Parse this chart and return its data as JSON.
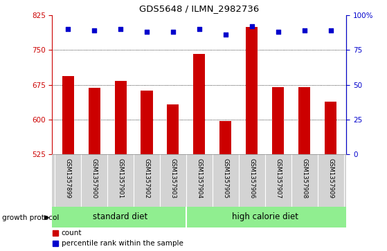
{
  "title": "GDS5648 / ILMN_2982736",
  "samples": [
    "GSM1357899",
    "GSM1357900",
    "GSM1357901",
    "GSM1357902",
    "GSM1357903",
    "GSM1357904",
    "GSM1357905",
    "GSM1357906",
    "GSM1357907",
    "GSM1357908",
    "GSM1357909"
  ],
  "counts": [
    693,
    668,
    683,
    663,
    633,
    742,
    597,
    800,
    670,
    670,
    638
  ],
  "percentile_ranks": [
    90,
    89,
    90,
    88,
    88,
    90,
    86,
    92,
    88,
    89,
    89
  ],
  "ylim_left": [
    525,
    825
  ],
  "ylim_right": [
    0,
    100
  ],
  "yticks_left": [
    525,
    600,
    675,
    750,
    825
  ],
  "yticks_right": [
    0,
    25,
    50,
    75,
    100
  ],
  "ytick_labels_right": [
    "0",
    "25",
    "50",
    "75",
    "100%"
  ],
  "bar_color": "#cc0000",
  "scatter_color": "#0000cc",
  "grid_lines": [
    600,
    675,
    750
  ],
  "standard_diet_indices": [
    0,
    1,
    2,
    3,
    4
  ],
  "high_calorie_indices": [
    5,
    6,
    7,
    8,
    9,
    10
  ],
  "standard_diet_label": "standard diet",
  "high_calorie_label": "high calorie diet",
  "growth_protocol_label": "growth protocol",
  "legend_count_label": "count",
  "legend_percentile_label": "percentile rank within the sample",
  "bar_area_bg": "#ffffff",
  "tick_area_color": "#d3d3d3",
  "group_label_bg": "#90EE90",
  "divider_color": "#ffffff",
  "n_samples": 11
}
